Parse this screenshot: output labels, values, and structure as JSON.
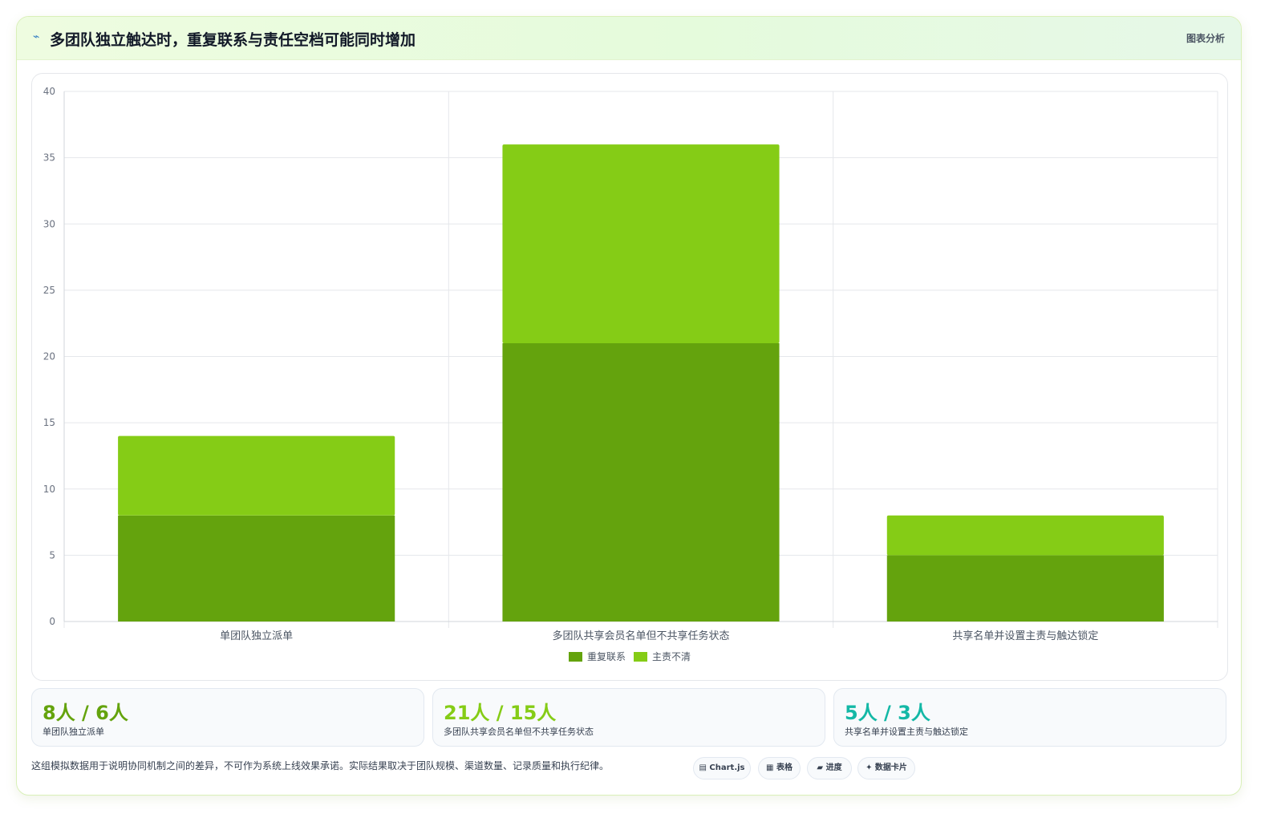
{
  "header": {
    "icon": "trend-icon",
    "title": "多团队独立触达时，重复联系与责任空档可能同时增加",
    "tag": "图表分析"
  },
  "colors": {
    "dark": "#64a30d",
    "light": "#85cc16",
    "teal": "#14b8a6"
  },
  "chart_data": {
    "type": "bar",
    "stacked": true,
    "categories": [
      "单团队独立派单",
      "多团队共享会员名单但不共享任务状态",
      "共享名单并设置主责与触达锁定"
    ],
    "series": [
      {
        "name": "重复联系",
        "values": [
          8,
          21,
          5
        ]
      },
      {
        "name": "主责不清",
        "values": [
          6,
          15,
          3
        ]
      }
    ],
    "ylim": [
      0,
      40
    ],
    "yticks": [
      "0",
      "5",
      "10",
      "15",
      "20",
      "25",
      "30",
      "35",
      "40"
    ],
    "grid": true,
    "legend": "bottom"
  },
  "stats": [
    {
      "value": "8人 / 6人",
      "label": "单团队独立派单"
    },
    {
      "value": "21人 / 15人",
      "label": "多团队共享会员名单但不共享任务状态"
    },
    {
      "value": "5人 / 3人",
      "label": "共享名单并设置主责与触达锁定"
    }
  ],
  "footer": {
    "note": "这组模拟数据用于说明协同机制之间的差异，不可作为系统上线效果承诺。实际结果取决于团队规模、渠道数量、记录质量和执行纪律。",
    "chips": [
      "▤ Chart.js",
      "▦ 表格",
      "▰ 进度",
      "✦ 数据卡片"
    ]
  }
}
